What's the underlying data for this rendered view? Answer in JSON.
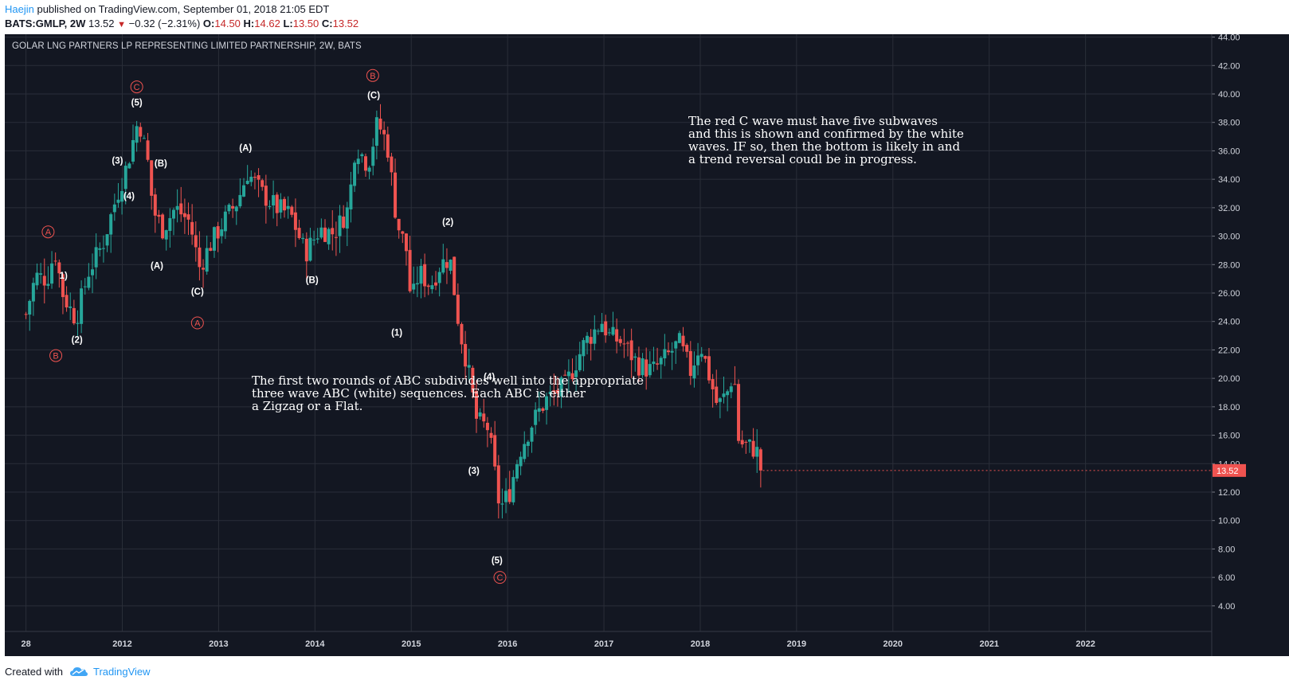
{
  "header": {
    "author": "Haejin",
    "published": " published on TradingView.com, September 01, 2018 21:05 EDT",
    "symbol": "BATS:GMLP, 2W",
    "last": "13.52",
    "change": "−0.32 (−2.31%)",
    "o_label": "O:",
    "o_value": "14.50",
    "h_label": "H:",
    "h_value": "14.62",
    "l_label": "L:",
    "l_value": "13.50",
    "c_label": "C:",
    "c_value": "13.52"
  },
  "chart_title": "GOLAR LNG PARTNERS LP REPRESENTING LIMITED PARTNERSHIP, 2W, BATS",
  "notes": {
    "right": "The red C wave must have five subwaves\nand this is shown and confirmed by the white\nwaves. IF so, then the bottom is likely in and\na trend reversal coudl be in progress.",
    "left": "The first two rounds of ABC subdivides well into the appropriate\nthree wave ABC (white) sequences. Each ABC is either\na Zigzag or a Flat."
  },
  "footer": {
    "created_with": "Created with",
    "brand": "TradingView"
  },
  "colors": {
    "background": "#131722",
    "grid": "#2a2e39",
    "up": "#26a69a",
    "down": "#ef5350",
    "wave_red": "#ef5350",
    "wave_white": "#ffffff",
    "axis_text": "#d1d4dc",
    "price_tag": "#ef5350"
  },
  "chart_data": {
    "type": "candlestick",
    "title": "GOLAR LNG PARTNERS LP REPRESENTING LIMITED PARTNERSHIP, 2W, BATS",
    "xlabel": "",
    "ylabel": "",
    "ylim": [
      2.2,
      44.2
    ],
    "y_ticks": [
      4,
      6,
      8,
      10,
      12,
      14,
      16,
      18,
      20,
      22,
      24,
      26,
      28,
      30,
      32,
      34,
      36,
      38,
      40,
      42,
      44
    ],
    "x_ticks": [
      {
        "t": 2011.0,
        "label": "28"
      },
      {
        "t": 2012.0,
        "label": "2012"
      },
      {
        "t": 2013.0,
        "label": "2013"
      },
      {
        "t": 2014.0,
        "label": "2014"
      },
      {
        "t": 2015.0,
        "label": "2015"
      },
      {
        "t": 2016.0,
        "label": "2016"
      },
      {
        "t": 2017.0,
        "label": "2017"
      },
      {
        "t": 2018.0,
        "label": "2018"
      },
      {
        "t": 2019.0,
        "label": "2019"
      },
      {
        "t": 2020.0,
        "label": "2020"
      },
      {
        "t": 2021.0,
        "label": "2021"
      },
      {
        "t": 2022.0,
        "label": "2022"
      }
    ],
    "x_range": [
      2010.78,
      2023.31
    ],
    "grid": true,
    "last_price": "13.52",
    "keypoints": [
      [
        2011.0,
        24.5
      ],
      [
        2011.1,
        27.2
      ],
      [
        2011.22,
        27.0
      ],
      [
        2011.3,
        29.0
      ],
      [
        2011.38,
        26.0
      ],
      [
        2011.45,
        25.0
      ],
      [
        2011.52,
        24.2
      ],
      [
        2011.65,
        27.5
      ],
      [
        2011.8,
        29.5
      ],
      [
        2011.95,
        33.0
      ],
      [
        2012.05,
        35.0
      ],
      [
        2012.17,
        38.3
      ],
      [
        2012.27,
        35.0
      ],
      [
        2012.32,
        31.8
      ],
      [
        2012.42,
        30.5
      ],
      [
        2012.55,
        32.0
      ],
      [
        2012.7,
        31.0
      ],
      [
        2012.8,
        27.8
      ],
      [
        2012.92,
        29.5
      ],
      [
        2013.05,
        31.0
      ],
      [
        2013.2,
        32.5
      ],
      [
        2013.3,
        34.5
      ],
      [
        2013.45,
        33.0
      ],
      [
        2013.6,
        32.0
      ],
      [
        2013.75,
        31.5
      ],
      [
        2013.9,
        28.8
      ],
      [
        2014.05,
        30.5
      ],
      [
        2014.2,
        30.2
      ],
      [
        2014.35,
        32.0
      ],
      [
        2014.42,
        36.5
      ],
      [
        2014.55,
        35.0
      ],
      [
        2014.65,
        38.0
      ],
      [
        2014.75,
        36.5
      ],
      [
        2014.85,
        31.0
      ],
      [
        2014.95,
        29.0
      ],
      [
        2015.0,
        25.2
      ],
      [
        2015.08,
        27.5
      ],
      [
        2015.2,
        26.5
      ],
      [
        2015.3,
        28.0
      ],
      [
        2015.4,
        28.5
      ],
      [
        2015.5,
        23.5
      ],
      [
        2015.58,
        21.0
      ],
      [
        2015.68,
        17.0
      ],
      [
        2015.8,
        16.5
      ],
      [
        2015.92,
        10.8
      ],
      [
        2016.02,
        12.0
      ],
      [
        2016.12,
        14.8
      ],
      [
        2016.25,
        16.8
      ],
      [
        2016.4,
        18.5
      ],
      [
        2016.6,
        19.5
      ],
      [
        2016.8,
        22.5
      ],
      [
        2016.98,
        24.0
      ],
      [
        2017.05,
        23.0
      ],
      [
        2017.2,
        22.5
      ],
      [
        2017.35,
        21.0
      ],
      [
        2017.5,
        20.5
      ],
      [
        2017.65,
        21.5
      ],
      [
        2017.78,
        22.5
      ],
      [
        2017.9,
        20.5
      ],
      [
        2018.0,
        22.5
      ],
      [
        2018.1,
        20.0
      ],
      [
        2018.18,
        18.0
      ],
      [
        2018.28,
        19.0
      ],
      [
        2018.35,
        20.5
      ],
      [
        2018.4,
        15.5
      ],
      [
        2018.5,
        15.2
      ],
      [
        2018.58,
        15.0
      ],
      [
        2018.65,
        13.52
      ]
    ],
    "wave_labels_red": [
      {
        "text": "A",
        "t": 2011.23,
        "p": 30.3
      },
      {
        "text": "B",
        "t": 2011.31,
        "p": 21.6
      },
      {
        "text": "C",
        "t": 2012.15,
        "p": 40.5
      },
      {
        "text": "A",
        "t": 2012.78,
        "p": 23.9
      },
      {
        "text": "B",
        "t": 2014.6,
        "p": 41.3
      },
      {
        "text": "C",
        "t": 2015.92,
        "p": 6.0
      }
    ],
    "wave_labels_white": [
      {
        "text": "1)",
        "t": 2011.39,
        "p": 27.0
      },
      {
        "text": "(2)",
        "t": 2011.53,
        "p": 22.5
      },
      {
        "text": "(3)",
        "t": 2011.95,
        "p": 35.1
      },
      {
        "text": "(4)",
        "t": 2012.07,
        "p": 32.6
      },
      {
        "text": "(5)",
        "t": 2012.15,
        "p": 39.2
      },
      {
        "text": "(B)",
        "t": 2012.4,
        "p": 34.9
      },
      {
        "text": "(A)",
        "t": 2012.36,
        "p": 27.7
      },
      {
        "text": "(C)",
        "t": 2012.78,
        "p": 25.9
      },
      {
        "text": "(A)",
        "t": 2013.28,
        "p": 36.0
      },
      {
        "text": "(B)",
        "t": 2013.97,
        "p": 26.7
      },
      {
        "text": "(C)",
        "t": 2014.61,
        "p": 39.7
      },
      {
        "text": "(2)",
        "t": 2015.38,
        "p": 30.8
      },
      {
        "text": "(1)",
        "t": 2014.85,
        "p": 23.0
      },
      {
        "text": "(4)",
        "t": 2015.81,
        "p": 19.9
      },
      {
        "text": "(3)",
        "t": 2015.65,
        "p": 13.3
      },
      {
        "text": "(5)",
        "t": 2015.89,
        "p": 7.0
      }
    ]
  }
}
